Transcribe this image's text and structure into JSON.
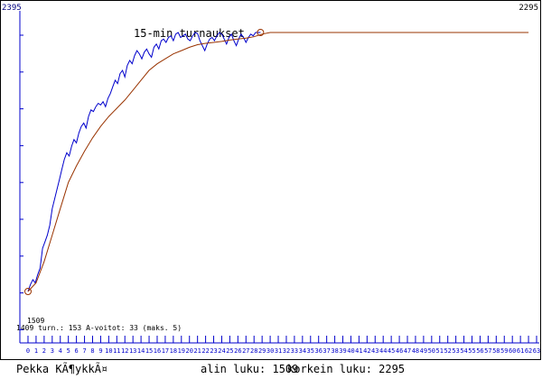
{
  "chart_data": {
    "type": "line",
    "title": "15-min turnaukset",
    "y_top_left_label": "2395",
    "y_top_right_label": "2295",
    "ylim": [
      1509,
      2395
    ],
    "low_marker_label": "1509",
    "stats_line": "1409 turn.: 153 A-voitot: 33  (maks. 5)",
    "x_tick_labels": [
      "0",
      "1",
      "2",
      "3",
      "4",
      "5",
      "6",
      "7",
      "8",
      "9",
      "10",
      "11",
      "12",
      "13",
      "14",
      "15",
      "16",
      "17",
      "18",
      "19",
      "20",
      "21",
      "22",
      "23",
      "24",
      "25",
      "26",
      "27",
      "28",
      "29",
      "30",
      "31",
      "32",
      "33",
      "34",
      "35",
      "36",
      "37",
      "38",
      "39",
      "40",
      "41",
      "42",
      "43",
      "44",
      "45",
      "46",
      "47",
      "48",
      "49",
      "50",
      "51",
      "52",
      "53",
      "54",
      "55",
      "56",
      "57",
      "58",
      "59",
      "60",
      "61",
      "62",
      "63"
    ],
    "series": [
      {
        "color": "#0000cc",
        "x": [
          0,
          0.3,
          0.6,
          0.9,
          1.2,
          1.5,
          1.8,
          2.1,
          2.4,
          2.7,
          3.0,
          3.3,
          3.6,
          3.9,
          4.2,
          4.5,
          4.8,
          5.1,
          5.4,
          5.7,
          6.0,
          6.3,
          6.6,
          6.9,
          7.2,
          7.5,
          7.8,
          8.1,
          8.4,
          8.7,
          9.0,
          9.3,
          9.6,
          9.9,
          10.2,
          10.5,
          10.8,
          11.1,
          11.4,
          11.7,
          12.0,
          12.3,
          12.6,
          12.9,
          13.2,
          13.5,
          13.8,
          14.1,
          14.4,
          14.7,
          15.0,
          15.3,
          15.6,
          15.9,
          16.2,
          16.5,
          16.8,
          17.1,
          17.4,
          17.7,
          18.0,
          18.3,
          18.6,
          18.9,
          19.2,
          19.5,
          19.8,
          20.1,
          20.4,
          20.7,
          21.0,
          21.3,
          21.6,
          21.9,
          22.2,
          22.5,
          22.8,
          23.1,
          23.4,
          23.7,
          24.0,
          24.3,
          24.6,
          24.9,
          25.2,
          25.5,
          25.8,
          26.1,
          26.4,
          26.7,
          27.0,
          27.3,
          27.6,
          27.9,
          28.2,
          28.5,
          28.8
        ],
        "values": [
          1509,
          1530,
          1545,
          1535,
          1560,
          1580,
          1640,
          1660,
          1680,
          1710,
          1760,
          1790,
          1820,
          1850,
          1880,
          1910,
          1930,
          1920,
          1950,
          1970,
          1960,
          1990,
          2010,
          2020,
          2005,
          2040,
          2060,
          2055,
          2070,
          2080,
          2075,
          2085,
          2070,
          2095,
          2110,
          2130,
          2150,
          2140,
          2170,
          2180,
          2160,
          2195,
          2210,
          2200,
          2225,
          2240,
          2230,
          2215,
          2235,
          2245,
          2230,
          2220,
          2250,
          2260,
          2245,
          2270,
          2275,
          2265,
          2280,
          2285,
          2270,
          2290,
          2295,
          2280,
          2285,
          2290,
          2275,
          2270,
          2285,
          2295,
          2292,
          2270,
          2255,
          2240,
          2260,
          2275,
          2280,
          2270,
          2285,
          2295,
          2290,
          2275,
          2260,
          2280,
          2290,
          2270,
          2255,
          2275,
          2290,
          2280,
          2265,
          2280,
          2290,
          2285,
          2295,
          2295,
          2295
        ]
      },
      {
        "color": "#993300",
        "x": [
          0,
          1,
          2,
          3,
          4,
          5,
          6,
          7,
          8,
          9,
          10,
          11,
          12,
          13,
          14,
          15,
          16,
          17,
          18,
          19,
          20,
          21,
          22,
          23,
          24,
          25,
          26,
          27,
          28,
          29,
          30,
          35,
          40,
          45,
          50,
          55,
          60,
          62
        ],
        "values": [
          1509,
          1535,
          1600,
          1680,
          1760,
          1840,
          1890,
          1935,
          1975,
          2010,
          2040,
          2065,
          2090,
          2120,
          2150,
          2180,
          2200,
          2215,
          2230,
          2240,
          2250,
          2258,
          2262,
          2265,
          2268,
          2272,
          2275,
          2278,
          2282,
          2290,
          2295,
          2295,
          2295,
          2295,
          2295,
          2295,
          2295,
          2295
        ]
      }
    ],
    "xlim": [
      0,
      63
    ]
  },
  "footer": {
    "name": "Pekka KÃ¶ykkÃ¤",
    "low_label": "alin luku: 1509",
    "high_label": "korkein luku: 2295"
  }
}
